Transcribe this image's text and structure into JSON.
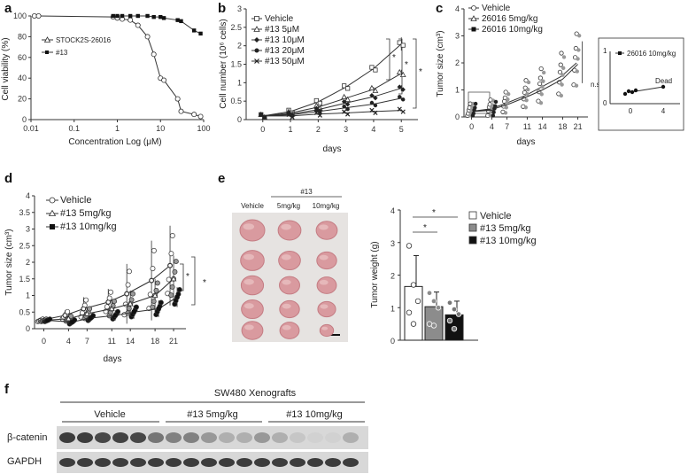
{
  "panels": {
    "a": "a",
    "b": "b",
    "c": "c",
    "d": "d",
    "e": "e",
    "f": "f"
  },
  "chart_data": [
    {
      "panel": "a",
      "type": "line",
      "xlabel": "Concentration Log (μM)",
      "ylabel": "Cell viability (%)",
      "x_scale": "log",
      "xlim": [
        0.01,
        100
      ],
      "ylim": [
        0,
        100
      ],
      "x_ticks": [
        "0.01",
        "0.1",
        "1",
        "10",
        "100"
      ],
      "y_ticks": [
        "0",
        "20",
        "40",
        "60",
        "80",
        "100"
      ],
      "legend": [
        "STOCK2S-26016",
        "#13"
      ],
      "series": [
        {
          "name": "STOCK2S-26016",
          "marker": "circle-open",
          "x": [
            0.012,
            0.015,
            0.8,
            1,
            1.3,
            2,
            3,
            5,
            7,
            10,
            12,
            25,
            30,
            60,
            85
          ],
          "y": [
            100,
            100,
            99,
            98,
            97,
            96,
            91,
            80,
            63,
            40,
            38,
            20,
            8,
            5,
            3
          ]
        },
        {
          "name": "#13",
          "marker": "square-filled",
          "x": [
            0.8,
            1,
            1.3,
            2,
            3,
            5,
            7,
            10,
            12,
            25,
            30,
            60,
            85
          ],
          "y": [
            100,
            100,
            100,
            100,
            100,
            100,
            99,
            99,
            98,
            96,
            95,
            86,
            83
          ]
        }
      ]
    },
    {
      "panel": "b",
      "type": "line",
      "xlabel": "days",
      "ylabel": "Cell number (10⁶ cells)",
      "xlim": [
        -0.6,
        5.6
      ],
      "ylim": [
        0,
        3
      ],
      "x_ticks": [
        "0",
        "1",
        "2",
        "3",
        "4",
        "5"
      ],
      "y_ticks": [
        "0",
        "0.5",
        "1",
        "1.5",
        "2",
        "2.5",
        "3"
      ],
      "legend": [
        "Vehicle",
        "#13 5μM",
        "#13 10μM",
        "#13 20μM",
        "#13 50μM"
      ],
      "categories": [
        0,
        1,
        2,
        3,
        4,
        5
      ],
      "series": [
        {
          "name": "Vehicle",
          "marker": "square-open",
          "values": [
            0.1,
            0.22,
            0.48,
            0.88,
            1.38,
            2.05
          ],
          "err": [
            0.02,
            0.03,
            0.05,
            0.05,
            0.08,
            0.18
          ]
        },
        {
          "name": "#13 5μM",
          "marker": "triangle-open",
          "values": [
            0.1,
            0.18,
            0.34,
            0.58,
            0.82,
            1.25
          ],
          "err": [
            0.02,
            0.03,
            0.04,
            0.05,
            0.06,
            0.1
          ]
        },
        {
          "name": "#13 10μM",
          "marker": "diamond-filled",
          "values": [
            0.1,
            0.15,
            0.27,
            0.45,
            0.62,
            0.85
          ],
          "err": [
            0.02,
            0.02,
            0.03,
            0.04,
            0.05,
            0.08
          ]
        },
        {
          "name": "#13 20μM",
          "marker": "circle-filled",
          "values": [
            0.1,
            0.13,
            0.22,
            0.32,
            0.42,
            0.58
          ],
          "err": [
            0.02,
            0.02,
            0.03,
            0.03,
            0.04,
            0.05
          ]
        },
        {
          "name": "#13 50μM",
          "marker": "cross",
          "values": [
            0.1,
            0.1,
            0.15,
            0.18,
            0.22,
            0.25
          ],
          "err": [
            0.01,
            0.02,
            0.02,
            0.02,
            0.02,
            0.03
          ]
        }
      ],
      "annotations": [
        "*",
        "*",
        "*"
      ]
    },
    {
      "panel": "c",
      "type": "line",
      "xlabel": "days",
      "ylabel": "Tumor size (cm³)",
      "xlim": [
        -1.5,
        23
      ],
      "ylim": [
        0,
        4
      ],
      "x_ticks": [
        "0",
        "4",
        "7",
        "11",
        "14",
        "18",
        "21"
      ],
      "y_ticks": [
        "0",
        "1",
        "2",
        "3",
        "4"
      ],
      "legend": [
        "Vehicle",
        "26016 5mg/kg",
        "26016 10mg/kg"
      ],
      "categories": [
        0,
        4,
        7,
        11,
        14,
        18,
        21
      ],
      "series": [
        {
          "name": "Vehicle",
          "marker": "circle-open",
          "values": [
            0.2,
            0.3,
            0.5,
            0.8,
            1.1,
            1.5,
            2.0
          ]
        },
        {
          "name": "26016 5mg/kg",
          "marker": "triangle-open",
          "values": [
            0.2,
            0.28,
            0.45,
            0.75,
            1.0,
            1.4,
            1.95
          ]
        },
        {
          "name": "26016 10mg/kg",
          "marker": "square-filled",
          "values": [
            0.2,
            0.25,
            null,
            null,
            null,
            null,
            null
          ]
        }
      ],
      "annotations": [
        "n.s"
      ],
      "inset": {
        "legend": "26016 10mg/kg",
        "y_ticks": [
          "0",
          "1"
        ],
        "x_ticks": [
          "0",
          "4"
        ],
        "annotation": "Dead"
      }
    },
    {
      "panel": "d",
      "type": "line",
      "xlabel": "days",
      "ylabel": "Tumor size (cm³)",
      "xlim": [
        -1.5,
        23
      ],
      "ylim": [
        0,
        4
      ],
      "x_ticks": [
        "0",
        "4",
        "7",
        "11",
        "14",
        "18",
        "21"
      ],
      "y_ticks": [
        "0",
        "0.5",
        "1",
        "1.5",
        "2",
        "2.5",
        "3",
        "3.5",
        "4"
      ],
      "legend": [
        "Vehicle",
        "#13 5mg/kg",
        "#13 10mg/kg"
      ],
      "categories": [
        0,
        4,
        7,
        11,
        14,
        18,
        21
      ],
      "series": [
        {
          "name": "Vehicle",
          "marker": "circle-open",
          "values": [
            0.25,
            0.4,
            0.6,
            0.8,
            1.05,
            1.45,
            1.9
          ],
          "err": [
            0.05,
            0.15,
            0.35,
            0.4,
            0.9,
            1.2,
            1.2
          ]
        },
        {
          "name": "#13 5mg/kg",
          "marker": "triangle-open",
          "values": [
            0.25,
            0.3,
            0.45,
            0.6,
            0.75,
            1.0,
            1.5
          ],
          "err": [
            0.05,
            0.1,
            0.2,
            0.3,
            0.4,
            0.5,
            0.7
          ]
        },
        {
          "name": "#13 10mg/kg",
          "marker": "square-filled",
          "values": [
            0.25,
            0.2,
            0.32,
            0.4,
            0.5,
            0.6,
            0.95
          ],
          "err": [
            0.05,
            0.08,
            0.1,
            0.15,
            0.2,
            0.25,
            0.3
          ]
        }
      ],
      "annotations": [
        "*",
        "*"
      ]
    },
    {
      "panel": "e",
      "type": "bar",
      "ylabel": "Tumor weight (g)",
      "ylim": [
        0,
        4
      ],
      "y_ticks": [
        "0",
        "1",
        "2",
        "3",
        "4"
      ],
      "categories": [
        "Vehicle",
        "#13 5mg/kg",
        "#13 10mg/kg"
      ],
      "values": [
        1.65,
        1.03,
        0.78
      ],
      "err": [
        0.95,
        0.45,
        0.42
      ],
      "points": [
        [
          2.9,
          1.7,
          1.2,
          0.85,
          0.5
        ],
        [
          1.45,
          1.2,
          1.0,
          0.5,
          0.45
        ],
        [
          1.15,
          0.95,
          0.8,
          0.6,
          0.35
        ]
      ],
      "colors": [
        "#ffffff",
        "#8c8c8c",
        "#111111"
      ],
      "legend": [
        "Vehicle",
        "#13 5mg/kg",
        "#13 10mg/kg"
      ],
      "annotations": [
        "*",
        "*"
      ]
    }
  ],
  "photo": {
    "group_header": "#13",
    "columns": [
      "Vehicle",
      "5mg/kg",
      "10mg/kg"
    ],
    "tumor_sizes": [
      [
        1.0,
        0.92,
        0.85
      ],
      [
        0.95,
        0.88,
        0.8
      ],
      [
        0.9,
        0.82,
        0.78
      ],
      [
        0.88,
        0.8,
        0.72
      ],
      [
        0.85,
        0.78,
        0.55
      ]
    ]
  },
  "blot": {
    "title": "SW480 Xenografts",
    "groups": [
      "Vehicle",
      "#13 5mg/kg",
      "#13 10mg/kg"
    ],
    "rows": [
      {
        "label": "β-catenin",
        "intensities": [
          0.85,
          0.85,
          0.8,
          0.82,
          0.8,
          0.6,
          0.55,
          0.55,
          0.45,
          0.35,
          0.35,
          0.45,
          0.35,
          0.25,
          0.2,
          0.2,
          0.35
        ]
      },
      {
        "label": "GAPDH",
        "intensities": [
          0.85,
          0.85,
          0.85,
          0.85,
          0.85,
          0.85,
          0.85,
          0.85,
          0.85,
          0.85,
          0.85,
          0.85,
          0.85,
          0.85,
          0.85,
          0.85,
          0.85
        ]
      }
    ]
  }
}
